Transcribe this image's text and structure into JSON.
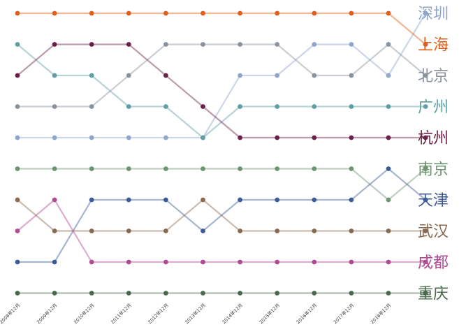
{
  "chart_data": {
    "type": "line",
    "title": "",
    "xlabel": "",
    "ylabel": "",
    "x": [
      "2008年12月",
      "2009年12月",
      "2010年12月",
      "2011年12月",
      "2012年12月",
      "2013年12月",
      "2014年12月",
      "2015年12月",
      "2016年12月",
      "2017年12月",
      "2018年12月",
      ""
    ],
    "series": [
      {
        "name": "深圳",
        "color": "#8fa5cc",
        "ranks": [
          5,
          5,
          5,
          5,
          5,
          5,
          3,
          3,
          2,
          2,
          3,
          1
        ]
      },
      {
        "name": "上海",
        "color": "#e15e1a",
        "ranks": [
          1,
          1,
          1,
          1,
          1,
          1,
          1,
          1,
          1,
          1,
          1,
          2
        ]
      },
      {
        "name": "北京",
        "color": "#8a939d",
        "ranks": [
          4,
          4,
          4,
          3,
          2,
          2,
          2,
          2,
          3,
          3,
          2,
          3
        ]
      },
      {
        "name": "广州",
        "color": "#5f9ea3",
        "ranks": [
          2,
          3,
          3,
          4,
          4,
          5,
          4,
          4,
          4,
          4,
          4,
          4
        ]
      },
      {
        "name": "杭州",
        "color": "#6b2147",
        "ranks": [
          3,
          2,
          2,
          2,
          3,
          4,
          5,
          5,
          5,
          5,
          5,
          5
        ]
      },
      {
        "name": "南京",
        "color": "#6e9470",
        "ranks": [
          6,
          6,
          6,
          6,
          6,
          6,
          6,
          6,
          6,
          6,
          7,
          6
        ]
      },
      {
        "name": "天津",
        "color": "#3e5b99",
        "ranks": [
          9,
          9,
          7,
          7,
          7,
          8,
          7,
          7,
          7,
          7,
          6,
          7
        ]
      },
      {
        "name": "武汉",
        "color": "#8a6a4f",
        "ranks": [
          7,
          8,
          8,
          8,
          8,
          7,
          8,
          8,
          8,
          8,
          8,
          8
        ]
      },
      {
        "name": "成都",
        "color": "#b04a93",
        "ranks": [
          8,
          7,
          9,
          9,
          9,
          9,
          9,
          9,
          9,
          9,
          9,
          9
        ]
      },
      {
        "name": "重庆",
        "color": "#4a6a4f",
        "ranks": [
          10,
          10,
          10,
          10,
          10,
          10,
          10,
          10,
          10,
          10,
          10,
          10
        ]
      }
    ],
    "grid": false,
    "legend": "right, labels aligned to final ranks"
  }
}
